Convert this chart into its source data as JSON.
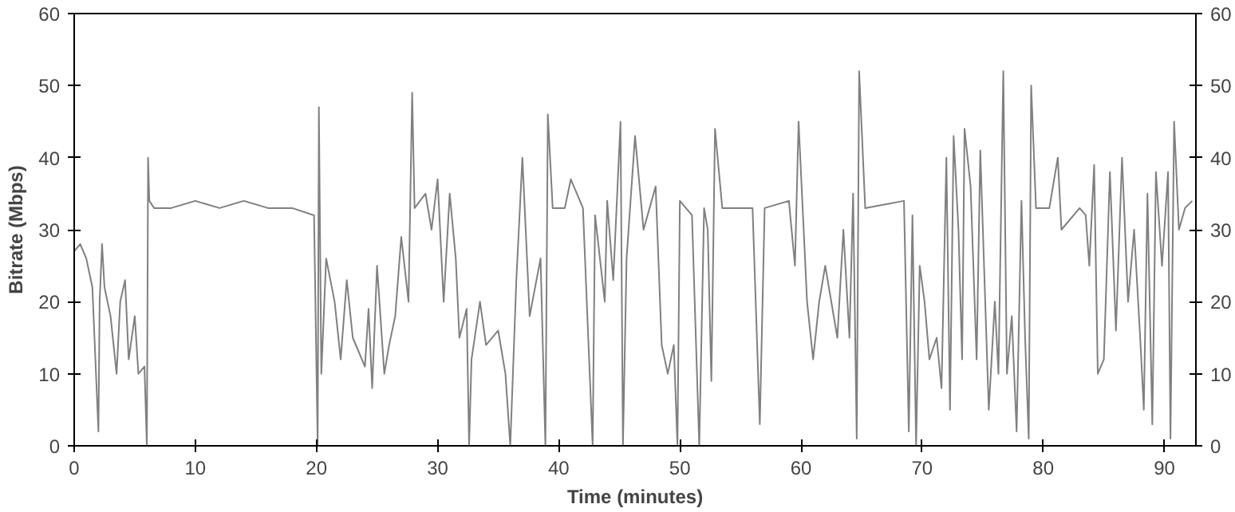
{
  "chart_data": {
    "type": "line",
    "xlabel": "Time (minutes)",
    "ylabel": "Bitrate (Mbps)",
    "xlim": [
      0,
      92.6
    ],
    "ylim": [
      0,
      60
    ],
    "xticks": [
      0,
      10,
      20,
      30,
      40,
      50,
      60,
      70,
      80,
      90
    ],
    "yticks": [
      0,
      10,
      20,
      30,
      40,
      50,
      60
    ],
    "y2lim": [
      0,
      60
    ],
    "y2ticks": [
      0,
      10,
      20,
      30,
      40,
      50,
      60
    ],
    "grid": false,
    "marker": "none",
    "line_style": "solid",
    "series": [
      {
        "color": "#808080",
        "x": [
          0,
          0.5,
          1,
          1.5,
          2,
          2.1,
          2.3,
          2.5,
          3,
          3.5,
          3.8,
          4.2,
          4.5,
          5,
          5.3,
          5.8,
          6,
          6.1,
          6.2,
          6.6,
          8,
          10,
          12,
          14,
          16,
          18,
          19.8,
          20.1,
          20.2,
          20.4,
          20.8,
          21.5,
          22,
          22.5,
          23,
          24,
          24.3,
          24.6,
          25,
          25.6,
          26,
          26.5,
          27,
          27.6,
          27.9,
          28.1,
          29,
          29.5,
          30,
          30.5,
          31,
          31.5,
          31.8,
          32.4,
          32.6,
          32.8,
          33.5,
          34,
          35,
          35.6,
          36,
          36.5,
          37,
          37.6,
          38.5,
          38.9,
          39.1,
          39.5,
          40.5,
          41,
          42,
          42.8,
          43,
          43.8,
          44,
          44.5,
          45.1,
          45.3,
          45.6,
          46.3,
          47,
          48,
          48.5,
          49,
          49.5,
          49.8,
          50,
          51,
          51.6,
          52,
          52.3,
          52.6,
          52.9,
          53.5,
          56,
          56.6,
          57,
          59,
          59.5,
          59.8,
          60.5,
          61,
          61.5,
          62,
          63,
          63.5,
          64,
          64.3,
          64.6,
          64.8,
          65.3,
          68.5,
          68.9,
          69.2,
          69.5,
          69.8,
          70.2,
          70.6,
          71.2,
          71.6,
          72,
          72.3,
          72.6,
          73,
          73.3,
          73.5,
          74,
          74.5,
          74.8,
          75.5,
          76,
          76.3,
          76.7,
          77,
          77.4,
          77.8,
          78.2,
          78.5,
          78.8,
          79,
          79.4,
          80.5,
          81.2,
          81.5,
          83,
          83.5,
          83.8,
          84.2,
          84.5,
          85,
          85.5,
          86,
          86.5,
          87,
          87.5,
          88,
          88.3,
          88.6,
          89,
          89.3,
          89.8,
          90.3,
          90.5,
          90.8,
          91.2,
          91.7,
          92.3
        ],
        "values": [
          27,
          28,
          26,
          22,
          2,
          20,
          28,
          22,
          18,
          10,
          20,
          23,
          12,
          18,
          10,
          11,
          0,
          40,
          34,
          33,
          33,
          34,
          33,
          34,
          33,
          33,
          32,
          0,
          47,
          10,
          26,
          20,
          12,
          23,
          15,
          11,
          19,
          8,
          25,
          10,
          14,
          18,
          29,
          20,
          49,
          33,
          35,
          30,
          37,
          20,
          35,
          26,
          15,
          19,
          0,
          12,
          20,
          14,
          16,
          10,
          0,
          23,
          40,
          18,
          26,
          0,
          46,
          33,
          33,
          37,
          33,
          0,
          32,
          20,
          34,
          23,
          45,
          0,
          26,
          43,
          30,
          36,
          14,
          10,
          14,
          0,
          34,
          32,
          0,
          33,
          30,
          9,
          44,
          33,
          33,
          3,
          33,
          34,
          25,
          45,
          20,
          12,
          20,
          25,
          15,
          30,
          15,
          35,
          1,
          52,
          33,
          34,
          2,
          32,
          0,
          25,
          20,
          12,
          15,
          8,
          40,
          5,
          43,
          30,
          12,
          44,
          36,
          12,
          41,
          5,
          20,
          10,
          52,
          10,
          18,
          2,
          34,
          15,
          1,
          50,
          33,
          33,
          40,
          30,
          33,
          32,
          25,
          39,
          10,
          12,
          38,
          16,
          40,
          20,
          30,
          15,
          5,
          35,
          3,
          38,
          25,
          38,
          1,
          45,
          30,
          33,
          34
        ]
      }
    ]
  }
}
